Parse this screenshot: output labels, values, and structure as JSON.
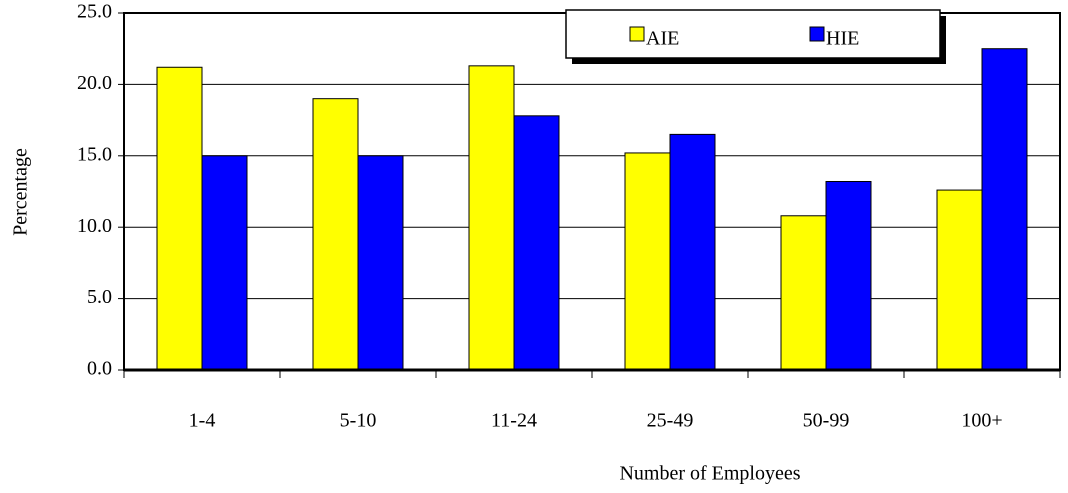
{
  "chart_data": {
    "type": "bar",
    "x_label": "Number of Employees",
    "y_label": "Percentage",
    "categories": [
      "1-4",
      "5-10",
      "11-24",
      "25-49",
      "50-99",
      "100+"
    ],
    "series": [
      {
        "name": "AIE",
        "color": "#ffff00",
        "values": [
          21.2,
          19.0,
          21.3,
          15.2,
          10.8,
          12.6
        ]
      },
      {
        "name": "HIE",
        "color": "#0000ff",
        "values": [
          15.0,
          15.0,
          17.8,
          16.5,
          13.2,
          22.5
        ]
      }
    ],
    "ylim": [
      0,
      25
    ],
    "yticks": [
      {
        "value": 0,
        "label": "0.0"
      },
      {
        "value": 5,
        "label": "5.0"
      },
      {
        "value": 10,
        "label": "10.0"
      },
      {
        "value": 15,
        "label": "15.0"
      },
      {
        "value": 20,
        "label": "20.0"
      },
      {
        "value": 25,
        "label": "25.0"
      }
    ],
    "grid": true,
    "legend": "top-right"
  }
}
